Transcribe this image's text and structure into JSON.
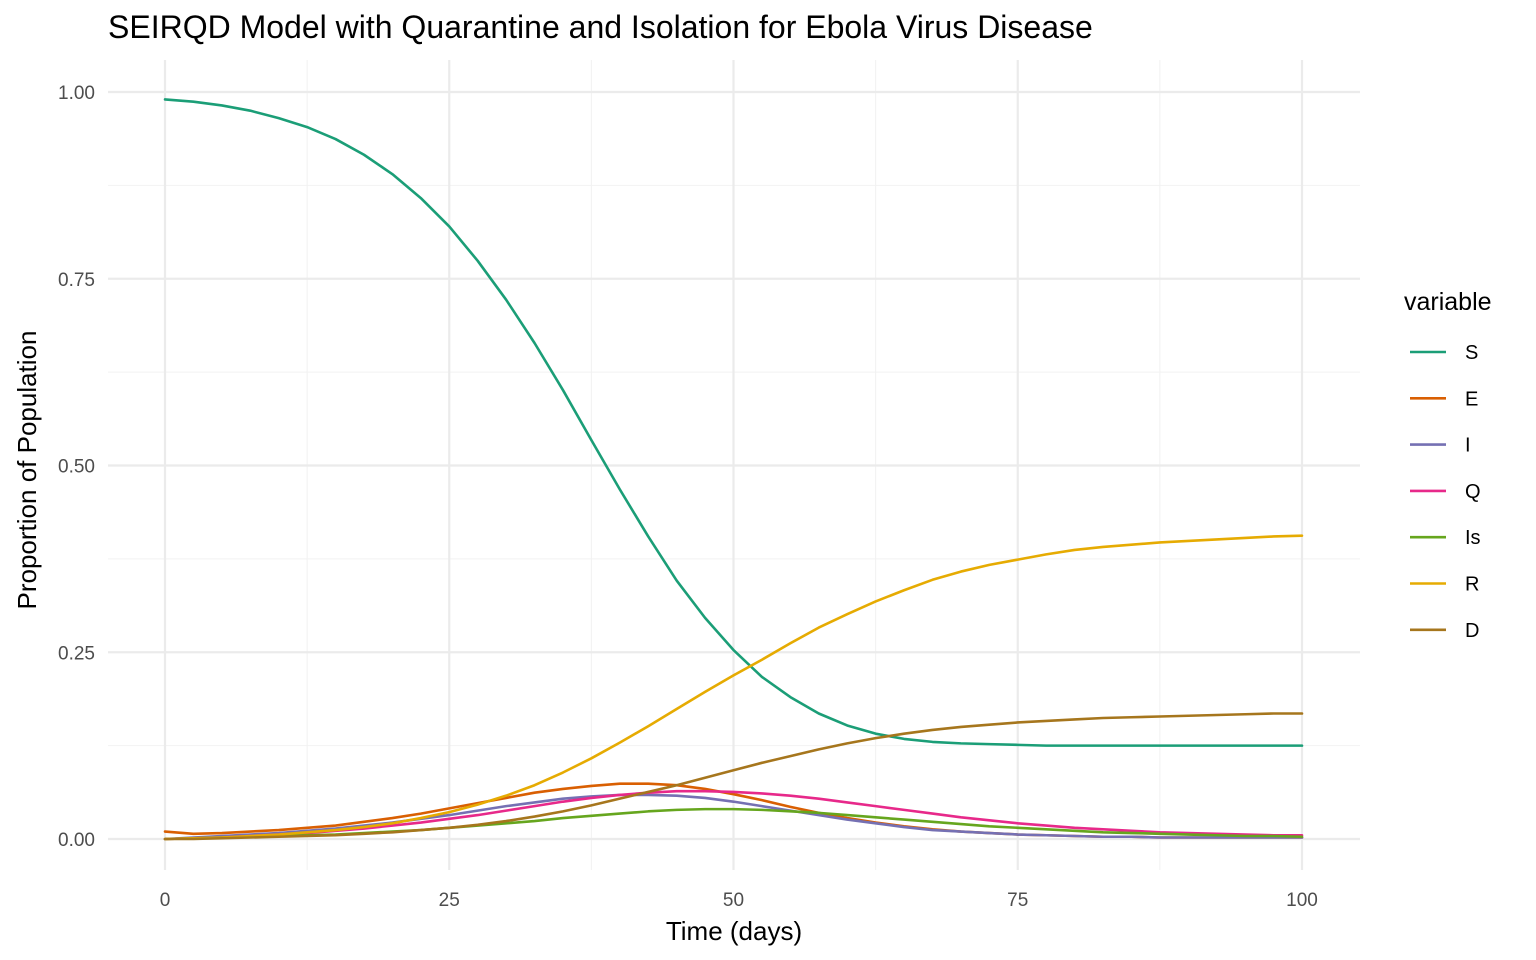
{
  "chart_data": {
    "type": "line",
    "title": "SEIRQD Model with Quarantine and Isolation for Ebola Virus Disease",
    "xlabel": "Time (days)",
    "ylabel": "Proportion of Population",
    "xlim": [
      0,
      100
    ],
    "ylim": [
      0,
      1
    ],
    "x_ticks": [
      0,
      25,
      50,
      75,
      100
    ],
    "x_tick_labels": [
      "0",
      "25",
      "50",
      "75",
      "100"
    ],
    "y_ticks": [
      0,
      0.25,
      0.5,
      0.75,
      1.0
    ],
    "y_tick_labels": [
      "0.00",
      "0.25",
      "0.50",
      "0.75",
      "1.00"
    ],
    "grid": true,
    "legend": {
      "title": "variable",
      "position": "right"
    },
    "x": [
      0,
      2.5,
      5,
      7.5,
      10,
      12.5,
      15,
      17.5,
      20,
      22.5,
      25,
      27.5,
      30,
      32.5,
      35,
      37.5,
      40,
      42.5,
      45,
      47.5,
      50,
      52.5,
      55,
      57.5,
      60,
      62.5,
      65,
      67.5,
      70,
      72.5,
      75,
      77.5,
      80,
      82.5,
      85,
      87.5,
      90,
      92.5,
      95,
      97.5,
      100
    ],
    "series": [
      {
        "name": "S",
        "color": "#1b9e77",
        "values": [
          0.99,
          0.987,
          0.982,
          0.975,
          0.965,
          0.953,
          0.937,
          0.916,
          0.89,
          0.858,
          0.82,
          0.774,
          0.722,
          0.664,
          0.601,
          0.534,
          0.468,
          0.405,
          0.346,
          0.296,
          0.253,
          0.217,
          0.19,
          0.168,
          0.152,
          0.141,
          0.134,
          0.13,
          0.128,
          0.127,
          0.126,
          0.125,
          0.125,
          0.125,
          0.125,
          0.125,
          0.125,
          0.125,
          0.125,
          0.125,
          0.125
        ]
      },
      {
        "name": "E",
        "color": "#d95f02",
        "values": [
          0.01,
          0.007,
          0.008,
          0.01,
          0.012,
          0.015,
          0.018,
          0.023,
          0.028,
          0.034,
          0.041,
          0.048,
          0.055,
          0.062,
          0.067,
          0.071,
          0.074,
          0.074,
          0.072,
          0.067,
          0.06,
          0.052,
          0.043,
          0.035,
          0.028,
          0.022,
          0.017,
          0.013,
          0.01,
          0.008,
          0.006,
          0.005,
          0.004,
          0.003,
          0.003,
          0.002,
          0.002,
          0.002,
          0.002,
          0.002,
          0.002
        ]
      },
      {
        "name": "I",
        "color": "#7570b3",
        "values": [
          0.0,
          0.002,
          0.004,
          0.006,
          0.008,
          0.011,
          0.014,
          0.018,
          0.022,
          0.027,
          0.032,
          0.038,
          0.044,
          0.049,
          0.054,
          0.057,
          0.059,
          0.059,
          0.058,
          0.055,
          0.05,
          0.044,
          0.038,
          0.032,
          0.026,
          0.021,
          0.016,
          0.012,
          0.01,
          0.008,
          0.006,
          0.005,
          0.004,
          0.003,
          0.003,
          0.002,
          0.002,
          0.002,
          0.002,
          0.002,
          0.002
        ]
      },
      {
        "name": "Q",
        "color": "#e7298a",
        "values": [
          0.0,
          0.001,
          0.002,
          0.004,
          0.006,
          0.008,
          0.011,
          0.014,
          0.018,
          0.022,
          0.027,
          0.032,
          0.038,
          0.044,
          0.05,
          0.055,
          0.059,
          0.062,
          0.064,
          0.064,
          0.063,
          0.061,
          0.058,
          0.054,
          0.049,
          0.044,
          0.039,
          0.034,
          0.029,
          0.025,
          0.021,
          0.018,
          0.015,
          0.013,
          0.011,
          0.009,
          0.008,
          0.007,
          0.006,
          0.005,
          0.005
        ]
      },
      {
        "name": "Is",
        "color": "#66a61e",
        "values": [
          0.0,
          0.001,
          0.002,
          0.003,
          0.004,
          0.005,
          0.006,
          0.008,
          0.01,
          0.012,
          0.015,
          0.018,
          0.021,
          0.024,
          0.028,
          0.031,
          0.034,
          0.037,
          0.039,
          0.04,
          0.04,
          0.039,
          0.037,
          0.035,
          0.032,
          0.029,
          0.026,
          0.023,
          0.02,
          0.017,
          0.015,
          0.013,
          0.011,
          0.009,
          0.008,
          0.007,
          0.006,
          0.005,
          0.004,
          0.004,
          0.003
        ]
      },
      {
        "name": "R",
        "color": "#e6ab02",
        "values": [
          0.0,
          0.001,
          0.002,
          0.004,
          0.006,
          0.009,
          0.012,
          0.016,
          0.021,
          0.028,
          0.036,
          0.046,
          0.058,
          0.072,
          0.089,
          0.108,
          0.129,
          0.151,
          0.174,
          0.197,
          0.219,
          0.24,
          0.262,
          0.283,
          0.301,
          0.318,
          0.333,
          0.347,
          0.358,
          0.367,
          0.374,
          0.381,
          0.387,
          0.391,
          0.394,
          0.397,
          0.399,
          0.401,
          0.403,
          0.405,
          0.406
        ]
      },
      {
        "name": "D",
        "color": "#a6761d",
        "values": [
          0.0,
          0.0,
          0.001,
          0.002,
          0.003,
          0.004,
          0.005,
          0.007,
          0.009,
          0.012,
          0.015,
          0.019,
          0.024,
          0.03,
          0.037,
          0.045,
          0.054,
          0.063,
          0.072,
          0.082,
          0.092,
          0.102,
          0.111,
          0.12,
          0.128,
          0.135,
          0.141,
          0.146,
          0.15,
          0.153,
          0.156,
          0.158,
          0.16,
          0.162,
          0.163,
          0.164,
          0.165,
          0.166,
          0.167,
          0.168,
          0.168
        ]
      }
    ]
  }
}
